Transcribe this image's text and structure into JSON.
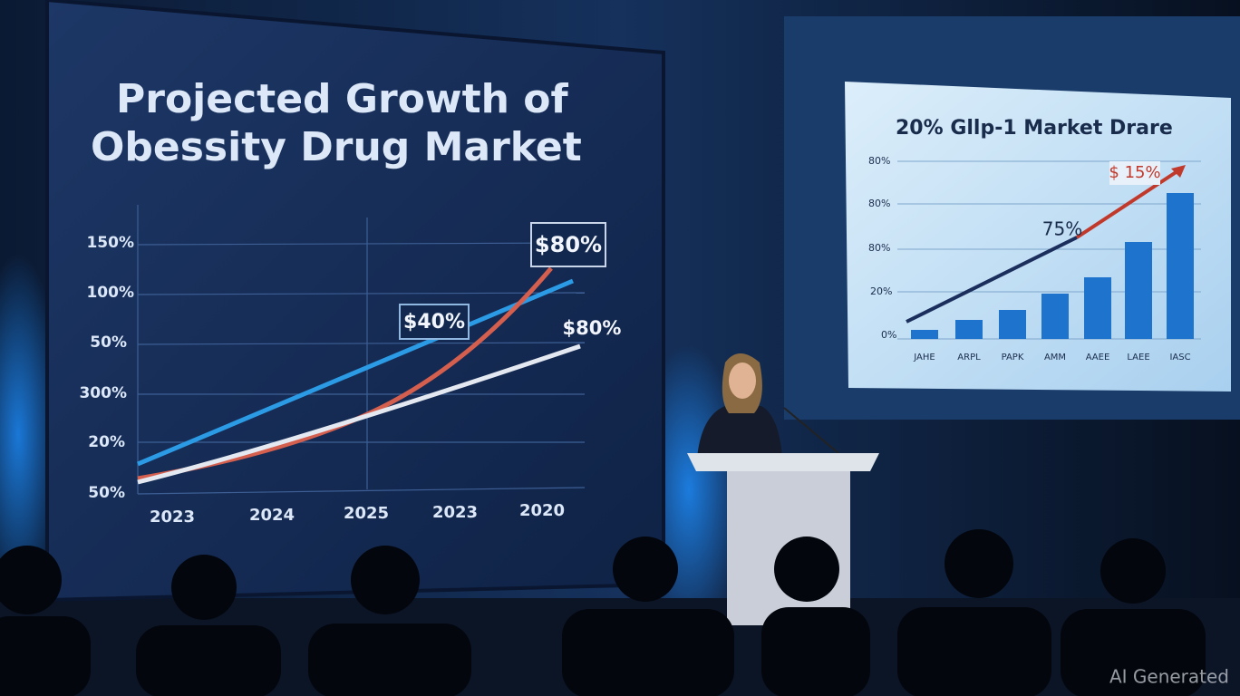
{
  "left_screen": {
    "title_lines": [
      "Projected Growth of",
      "Obessity Drug Market"
    ],
    "y_labels": [
      "150%",
      "100%",
      "50%",
      "300%",
      "20%",
      "50%"
    ],
    "x_labels": [
      "2023",
      "2024",
      "2025",
      "2023",
      "2020"
    ],
    "callouts": [
      "$80%",
      "$40%",
      "$80%"
    ]
  },
  "right_screen": {
    "title": "20% Gllp-1 Market Drare",
    "y_labels": [
      "80%",
      "80%",
      "80%",
      "20%",
      "0%"
    ],
    "x_labels": [
      "JAHE",
      "ARPL",
      "PAPK",
      "AMM",
      "AAEE",
      "LAEE",
      "IASC"
    ],
    "callouts": [
      "75%",
      "$ 15%"
    ]
  },
  "watermark": "AI Generated"
}
